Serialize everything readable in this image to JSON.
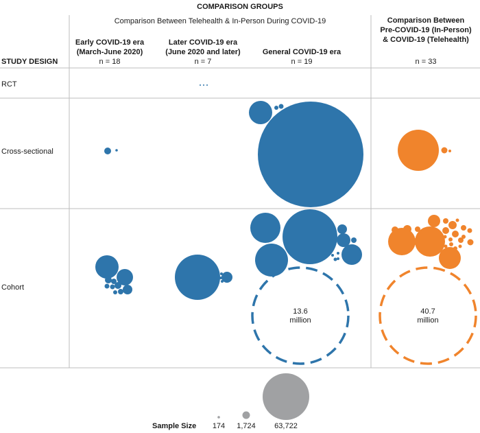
{
  "header": {
    "super_title": "COMPARISON GROUPS",
    "group_a_title": "Comparison Between Telehealth & In-Person During COVID-19",
    "group_b_title_line1": "Comparison Between",
    "group_b_title_line2": "Pre-COVID-19 (In-Person)",
    "group_b_title_line3": "& COVID-19 (Telehealth)",
    "row_header": "STUDY DESIGN"
  },
  "columns": [
    {
      "title_line1": "Early COVID-19 era",
      "title_line2": "(March-June 2020)",
      "n": "n = 18"
    },
    {
      "title_line1": "Later COVID-19 era",
      "title_line2": "(June 2020 and later)",
      "n": "n = 7"
    },
    {
      "title_line1": "General COVID-19 era",
      "title_line2": "",
      "n": "n = 19"
    },
    {
      "title_line1": "",
      "title_line2": "",
      "n": "n = 33"
    }
  ],
  "rows": [
    {
      "label": "RCT"
    },
    {
      "label": "Cross-sectional"
    },
    {
      "label": "Cohort"
    }
  ],
  "colors": {
    "telehealth_covid": "#2e75ab",
    "pre_vs_covid": "#f0842c",
    "legend": "#a0a1a3",
    "grid": "#bdbdbd"
  },
  "large_studies": [
    {
      "value_line1": "13.6",
      "value_line2": "million"
    },
    {
      "value_line1": "40.7",
      "value_line2": "million"
    }
  ],
  "legend": {
    "title": "Sample Size",
    "items": [
      {
        "label": "174"
      },
      {
        "label": "1,724"
      },
      {
        "label": "63,722"
      }
    ]
  }
}
